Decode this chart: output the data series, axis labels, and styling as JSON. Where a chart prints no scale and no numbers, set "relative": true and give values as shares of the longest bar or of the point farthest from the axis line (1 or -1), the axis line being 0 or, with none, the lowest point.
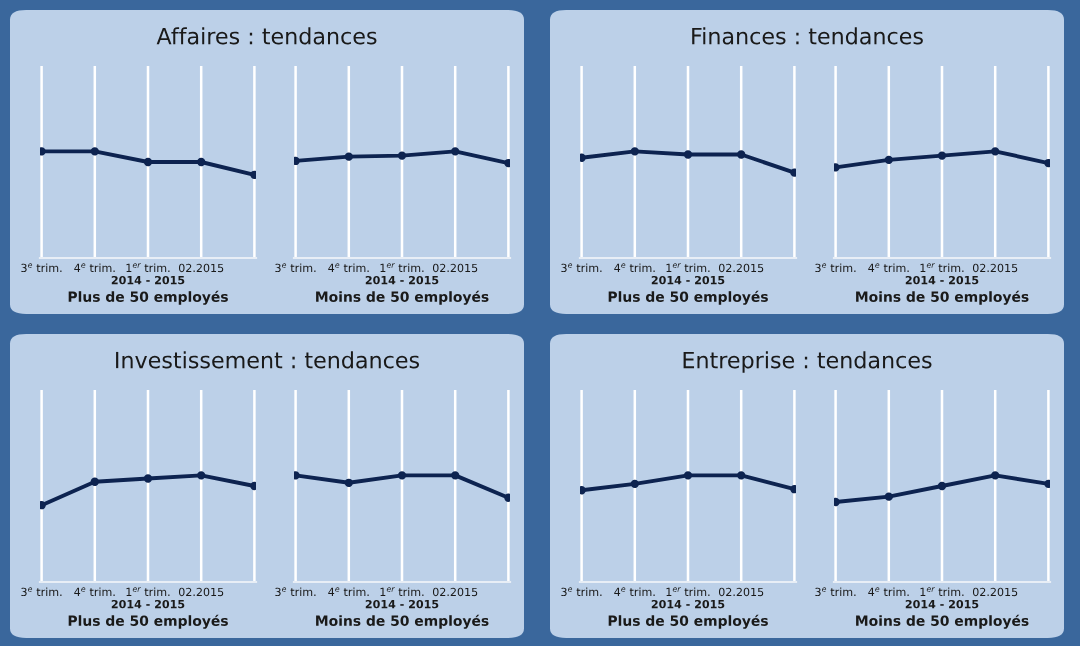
{
  "chart_data": [
    {
      "type": "line",
      "title": "Affaires : tendances",
      "categories": [
        "3$^{e}$ trim.",
        "4$^{e}$ trim.",
        "1$^{er}$ trim.",
        "02.2015",
        null
      ],
      "xlabel": "2014 - 2015",
      "annotations": [
        "Plus de 50 employés"
      ],
      "relative": true,
      "grid": "x",
      "marker": "circle",
      "line_style": "solid",
      "series": [
        {
          "color": "#0d2350",
          "values": [
            1,
            1,
            0.9,
            0.9,
            0.78
          ]
        }
      ]
    },
    {
      "type": "line",
      "categories": [
        "3$^{e}$ trim.",
        "4$^{e}$ trim.",
        "1$^{er}$ trim.",
        "02.2015",
        null
      ],
      "xlabel": "2014 - 2015",
      "annotations": [
        "Moins de 50 employés"
      ],
      "relative": true,
      "grid": "x",
      "marker": "circle",
      "line_style": "solid",
      "series": [
        {
          "color": "#0d2350",
          "values": [
            0.91,
            0.95,
            0.96,
            1,
            0.89
          ]
        }
      ]
    },
    {
      "type": "line",
      "title": "Finances : tendances",
      "categories": [
        "3$^{e}$ trim.",
        "4$^{e}$ trim.",
        "1$^{er}$ trim.",
        "02.2015",
        null
      ],
      "xlabel": "2014 - 2015",
      "annotations": [
        "Plus de 50 employés"
      ],
      "relative": true,
      "grid": "x",
      "marker": "circle",
      "line_style": "solid",
      "series": [
        {
          "color": "#0d2350",
          "values": [
            0.94,
            1,
            0.97,
            0.97,
            0.8
          ]
        }
      ]
    },
    {
      "type": "line",
      "categories": [
        "3$^{e}$ trim.",
        "4$^{e}$ trim.",
        "1$^{er}$ trim.",
        "02.2015",
        null
      ],
      "xlabel": "2014 - 2015",
      "annotations": [
        "Moins de 50 employés"
      ],
      "relative": true,
      "grid": "x",
      "marker": "circle",
      "line_style": "solid",
      "series": [
        {
          "color": "#0d2350",
          "values": [
            0.85,
            0.92,
            0.96,
            1,
            0.89
          ]
        }
      ]
    },
    {
      "type": "line",
      "title": "Investissement : tendances",
      "categories": [
        "3$^{e}$ trim.",
        "4$^{e}$ trim.",
        "1$^{er}$ trim.",
        "02.2015",
        null
      ],
      "xlabel": "2014 - 2015",
      "annotations": [
        "Plus de 50 employés"
      ],
      "relative": true,
      "grid": "x",
      "marker": "circle",
      "line_style": "solid",
      "series": [
        {
          "color": "#0d2350",
          "values": [
            0.72,
            0.94,
            0.97,
            1,
            0.9
          ]
        }
      ]
    },
    {
      "type": "line",
      "categories": [
        "3$^{e}$ trim.",
        "4$^{e}$ trim.",
        "1$^{er}$ trim.",
        "02.2015",
        null
      ],
      "xlabel": "2014 - 2015",
      "annotations": [
        "Moins de 50 employés"
      ],
      "relative": true,
      "grid": "x",
      "marker": "circle",
      "line_style": "solid",
      "series": [
        {
          "color": "#0d2350",
          "values": [
            1,
            0.93,
            1,
            1,
            0.79
          ]
        }
      ]
    },
    {
      "type": "line",
      "title": "Entreprise : tendances",
      "categories": [
        "3$^{e}$ trim.",
        "4$^{e}$ trim.",
        "1$^{er}$ trim.",
        "02.2015",
        null
      ],
      "xlabel": "2014 - 2015",
      "annotations": [
        "Plus de 50 employés"
      ],
      "relative": true,
      "grid": "x",
      "marker": "circle",
      "line_style": "solid",
      "series": [
        {
          "color": "#0d2350",
          "values": [
            0.86,
            0.92,
            1,
            1,
            0.87
          ]
        }
      ]
    },
    {
      "type": "line",
      "categories": [
        "3$^{e}$ trim.",
        "4$^{e}$ trim.",
        "1$^{er}$ trim.",
        "02.2015",
        null
      ],
      "xlabel": "2014 - 2015",
      "annotations": [
        "Moins de 50 employés"
      ],
      "relative": true,
      "grid": "x",
      "marker": "circle",
      "line_style": "solid",
      "series": [
        {
          "color": "#0d2350",
          "values": [
            0.75,
            0.8,
            0.9,
            1,
            0.92
          ]
        }
      ]
    }
  ]
}
